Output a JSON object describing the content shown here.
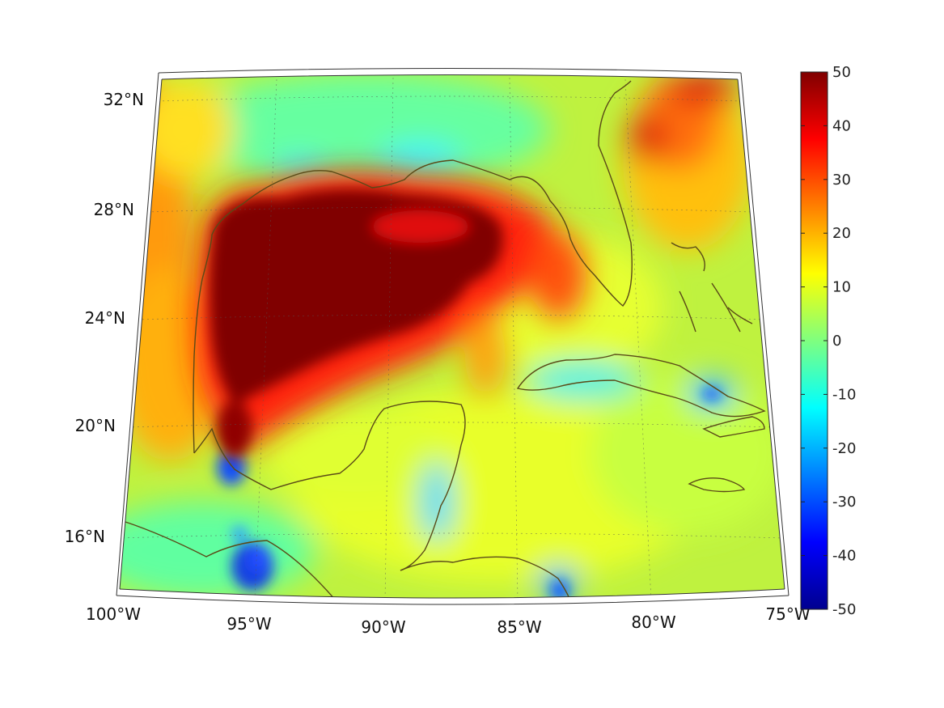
{
  "map": {
    "projection": "conic",
    "lat_labels": [
      "32°N",
      "28°N",
      "24°N",
      "20°N",
      "16°N"
    ],
    "lon_labels": [
      "100°W",
      "95°W",
      "90°W",
      "85°W",
      "80°W",
      "75°W"
    ],
    "coastline_color": "#5a4a17"
  },
  "colorbar": {
    "colormap": "jet",
    "min": -50,
    "max": 50,
    "tick_labels": [
      "50",
      "40",
      "30",
      "20",
      "10",
      "0",
      "-10",
      "-20",
      "-30",
      "-40",
      "-50"
    ]
  },
  "field": {
    "background_value": 5,
    "hotspots": [
      {
        "label": "central Gulf of Mexico",
        "value": 50
      },
      {
        "label": "western Gulf coast",
        "value": 25
      },
      {
        "label": "Atlantic east of Florida",
        "value": 30
      },
      {
        "label": "Bay of Campeche",
        "value": -25
      },
      {
        "label": "Pacific coast south of Mexico",
        "value": -35
      }
    ]
  }
}
